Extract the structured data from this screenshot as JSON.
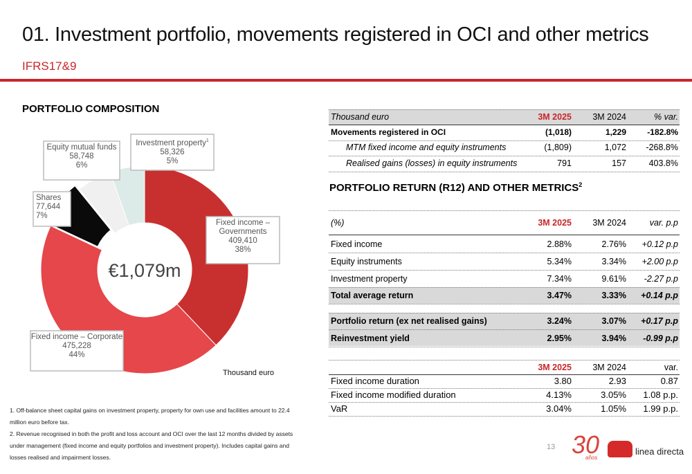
{
  "header": {
    "title": "01. Investment portfolio, movements registered in OCI and other metrics",
    "subtitle": "IFRS17&9"
  },
  "composition": {
    "title": "PORTFOLIO COMPOSITION"
  },
  "chart_data": {
    "type": "donut",
    "center_label": "€1,079m",
    "unit_note": "Thousand euro",
    "categories": [
      "Fixed income – Governments",
      "Fixed income – Corporate",
      "Shares",
      "Equity mutual  funds",
      "Investment property"
    ],
    "category_footnotes": [
      null,
      null,
      null,
      null,
      "1"
    ],
    "values": [
      409410,
      475228,
      77644,
      58748,
      58326
    ],
    "value_labels": [
      "409,410",
      "475,228",
      "77,644",
      "58,748",
      "58,326"
    ],
    "percent_labels": [
      "38%",
      "44%",
      "7%",
      "6%",
      "5%"
    ],
    "colors": [
      "#c8302f",
      "#e5474a",
      "#0a0a0a",
      "#f0f0f0",
      "#dcebe7"
    ]
  },
  "oci_table": {
    "header": [
      "Thousand euro",
      "3M 2025",
      "3M 2024",
      "% var."
    ],
    "rows": [
      [
        "Movements registered in OCI",
        "(1,018)",
        "1,229",
        "-182.8%"
      ],
      [
        "MTM fixed income and equity instruments",
        "(1,809)",
        "1,072",
        "-268.8%"
      ],
      [
        "Realised gains (losses) in equity instruments",
        "791",
        "157",
        "403.8%"
      ]
    ]
  },
  "return_section": {
    "title": "PORTFOLIO RETURN (R12) AND OTHER METRICS",
    "footnote_mark": "2"
  },
  "return_table": {
    "header": [
      "(%)",
      "3M 2025",
      "3M 2024",
      "var. p.p"
    ],
    "rows": [
      [
        "Fixed income",
        "2.88%",
        "2.76%",
        "+0.12 p.p"
      ],
      [
        "Equity instruments",
        "5.34%",
        "3.34%",
        "+2.00 p.p"
      ],
      [
        "Investment property",
        "7.34%",
        "9.61%",
        "-2.27 p.p"
      ],
      [
        "Total average return",
        "3.47%",
        "3.33%",
        "+0.14 p.p"
      ],
      [
        "Portfolio return (ex net realised gains)",
        "3.24%",
        "3.07%",
        "+0.17 p.p"
      ],
      [
        "Reinvestment yield",
        "2.95%",
        "3.94%",
        "-0.99 p.p"
      ]
    ]
  },
  "metrics_table": {
    "header": [
      "3M 2025",
      "3M 2024",
      "var."
    ],
    "rows": [
      [
        "Fixed income duration",
        "3.80",
        "2.93",
        "0.87"
      ],
      [
        "Fixed income modified duration",
        "4.13%",
        "3.05%",
        "1.08 p.p."
      ],
      [
        "VaR",
        "3.04%",
        "1.05%",
        "1.99 p.p."
      ]
    ]
  },
  "footnotes": [
    "1. Off-balance sheet capital gains on investment property, property for own use and facilities amount to 22.4 million euro before tax.",
    "2. Revenue recognised in both the profit and loss account and OCI over the last 12 months divided by assets under management (fixed income and equity portfolios and investment property). Includes capital gains and losses realised and impairment losses."
  ],
  "footer": {
    "page_number": "13",
    "anniversary": "30",
    "anniversary_word": "años",
    "brand": "linea directa"
  }
}
